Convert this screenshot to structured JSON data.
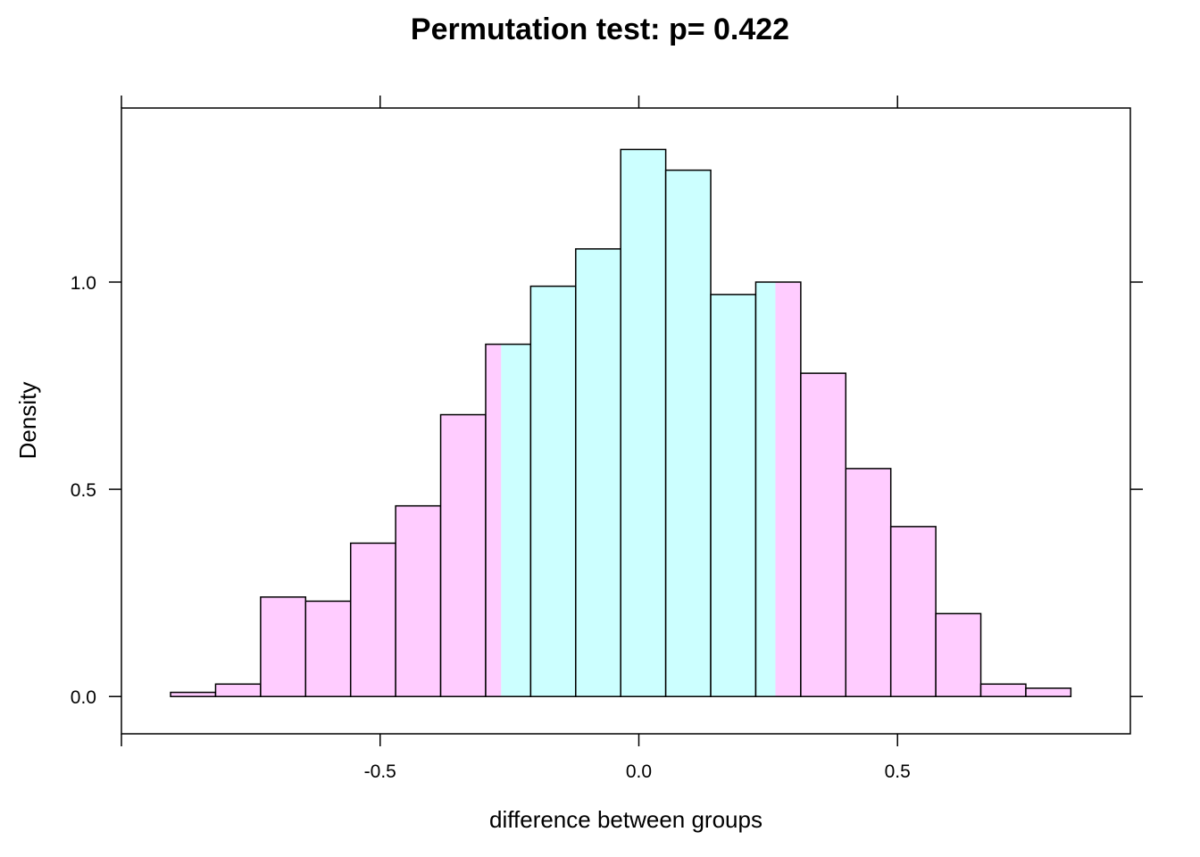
{
  "colors": {
    "tail": "#ffccff",
    "center": "#ccffff",
    "stroke": "#000000"
  },
  "chart_data": {
    "type": "bar",
    "title": "Permutation test: p= 0.422",
    "xlabel": "difference between groups",
    "ylabel": "Density",
    "xlim": [
      -1.0,
      0.95
    ],
    "ylim": [
      -0.09,
      1.42
    ],
    "x_ticks": [
      -0.5,
      0.0,
      0.5
    ],
    "x_tick_labels": [
      "-0.5",
      "0.0",
      "0.5"
    ],
    "y_ticks": [
      0.0,
      0.5,
      1.0
    ],
    "y_tick_labels": [
      "0.0",
      "0.5",
      "1.0"
    ],
    "shade_interval": [
      -0.266,
      0.264
    ],
    "bin_edges": [
      -0.905,
      -0.818,
      -0.731,
      -0.644,
      -0.557,
      -0.47,
      -0.383,
      -0.296,
      -0.209,
      -0.122,
      -0.035,
      0.052,
      0.139,
      0.226,
      0.313,
      0.4,
      0.487,
      0.574,
      0.661,
      0.748,
      0.835
    ],
    "values": [
      0.01,
      0.03,
      0.24,
      0.23,
      0.37,
      0.46,
      0.68,
      0.85,
      0.99,
      1.08,
      1.32,
      1.27,
      0.97,
      1.0,
      0.78,
      0.55,
      0.41,
      0.2,
      0.03,
      0.02
    ]
  }
}
